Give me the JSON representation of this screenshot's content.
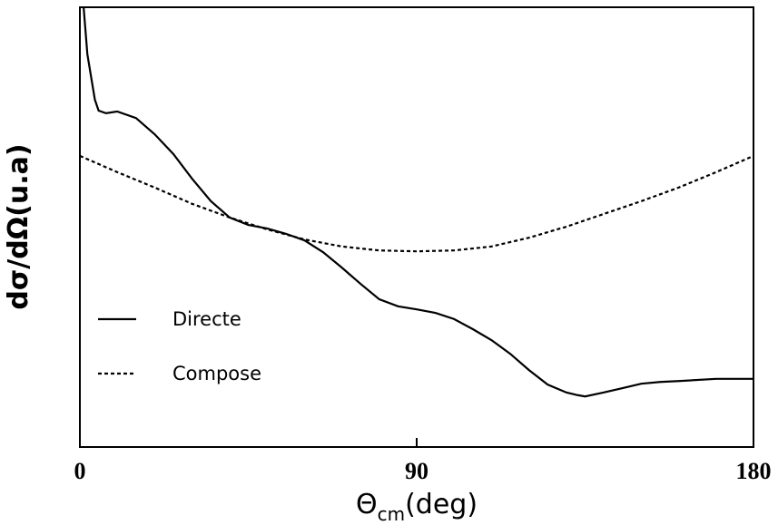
{
  "chart_data": {
    "type": "line",
    "x_label": [
      "Θ",
      "cm",
      "(deg)"
    ],
    "y_label": "dσ/dΩ(u.a)",
    "xlim": [
      0,
      180
    ],
    "xticks": [
      0,
      90,
      180
    ],
    "ylim": [
      0,
      100
    ],
    "legend": "lower left",
    "series": [
      {
        "name": "Directe",
        "color": "#000000",
        "style": "solid",
        "x": [
          1,
          2,
          4,
          5,
          7,
          10,
          15,
          20,
          25,
          30,
          35,
          40,
          45,
          50,
          55,
          60,
          65,
          70,
          75,
          80,
          85,
          90,
          95,
          100,
          105,
          110,
          115,
          120,
          125,
          130,
          133,
          135,
          140,
          145,
          150,
          155,
          160,
          170,
          180
        ],
        "values": [
          100,
          89.3,
          79,
          76.5,
          75.9,
          76.3,
          74.8,
          71.1,
          66.6,
          61,
          55.9,
          52.2,
          50.5,
          49.7,
          48.5,
          47,
          44.3,
          40.8,
          37.1,
          33.6,
          32,
          31.3,
          30.5,
          29.1,
          26.8,
          24.3,
          21.2,
          17.5,
          14.2,
          12.4,
          11.8,
          11.5,
          12.4,
          13.4,
          14.4,
          14.8,
          15,
          15.5,
          15.5
        ]
      },
      {
        "name": "Compose",
        "color": "#000000",
        "style": "dotted",
        "x": [
          0,
          10,
          20,
          30,
          40,
          50,
          60,
          70,
          80,
          90,
          100,
          110,
          120,
          130,
          140,
          150,
          160,
          170,
          180
        ],
        "values": [
          66.2,
          62.5,
          59,
          55.3,
          52.2,
          49.5,
          47.2,
          45.6,
          44.7,
          44.5,
          44.7,
          45.6,
          47.6,
          50.1,
          53,
          55.9,
          59,
          62.5,
          66.2
        ]
      }
    ]
  }
}
